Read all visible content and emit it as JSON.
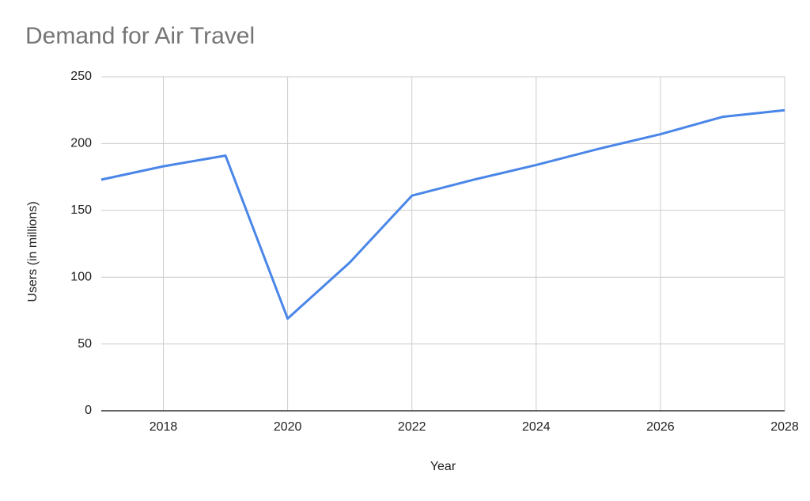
{
  "chart_data": {
    "type": "line",
    "title": "Demand for Air Travel",
    "x_label": "Year",
    "y_label": "Users (in millions)",
    "x": [
      2017,
      2018,
      2019,
      2020,
      2021,
      2022,
      2023,
      2024,
      2025,
      2026,
      2027,
      2028
    ],
    "series": [
      {
        "name": "Users (in millions)",
        "color": "#4a86e8",
        "values": [
          173,
          183,
          191,
          69,
          111,
          161,
          173,
          184,
          196,
          207,
          220,
          225
        ]
      }
    ],
    "xlim": [
      2017,
      2028
    ],
    "xticks": [
      2018,
      2020,
      2022,
      2024,
      2026,
      2028
    ],
    "ylim": [
      0,
      250
    ],
    "yticks": [
      0,
      50,
      100,
      150,
      200,
      250
    ],
    "grid": true
  }
}
